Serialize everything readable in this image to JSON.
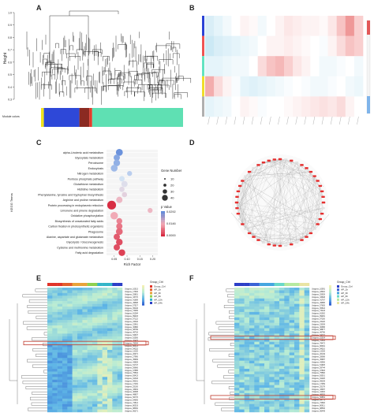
{
  "panels": {
    "a": {
      "label": "A",
      "ylabel": "Height",
      "ticks": [
        "1.0",
        "0.9",
        "0.8",
        "0.7",
        "0.6",
        "0.5",
        "0.4",
        "0.3"
      ],
      "module_label": "Module colors",
      "module_colors": [
        {
          "name": "yellow",
          "hex": "#f1e31c",
          "frac": 0.02
        },
        {
          "name": "blue",
          "hex": "#2e48d8",
          "frac": 0.25
        },
        {
          "name": "brown",
          "hex": "#8b2a22",
          "frac": 0.07
        },
        {
          "name": "red",
          "hex": "#e23a2a",
          "frac": 0.02
        },
        {
          "name": "turquoise",
          "hex": "#5fe0b3",
          "frac": 0.64
        }
      ]
    },
    "b": {
      "label": "B",
      "row_colors": [
        "#2a43d6",
        "#f05353",
        "#62e3c2",
        "#f0de2a",
        "#b0b0b0"
      ]
    },
    "c": {
      "label": "C",
      "xlabel": "Rich Factor",
      "ylabel": "KEGG Terms",
      "size_legend_title": "Gene Number",
      "size_legend_values": [
        "10",
        "20",
        "30",
        "40"
      ],
      "color_legend_title": "p Value",
      "color_legend_values": [
        "0.0292",
        "0.0146",
        "0.0000"
      ],
      "xticks": [
        "0.05",
        "0.10",
        "0.15",
        "0.20"
      ]
    },
    "d": {
      "label": "D"
    },
    "e": {
      "label": "E",
      "legend_title": "Group_Ctrl",
      "legend_items": [
        "Group_Ctrl",
        "AP_1h",
        "AP_3h",
        "AP_6h",
        "AP_12h",
        "AP_24h"
      ]
    },
    "f": {
      "label": "F",
      "legend_title": "Group_Ctrl",
      "legend_items": [
        "Group_Ctrl",
        "AP_1h",
        "AP_3h",
        "AP_6h",
        "AP_12h",
        "AP_24h"
      ]
    }
  },
  "chart_data": [
    {
      "type": "scatter",
      "title": "",
      "xlabel": "Rich Factor",
      "ylabel": "KEGG Terms",
      "xlim": [
        0.02,
        0.22
      ],
      "categories": [
        "alpha-Linolenic acid metabolism",
        "Glyoxylate metabolism",
        "Peroxisome",
        "Endocytosis",
        "Nitrogen metabolism",
        "Pentose phosphate pathway",
        "Glutathione metabolism",
        "Histidine metabolism",
        "Phenylalanine, tyrosine and tryptophan biosynthesis",
        "Arginine and proline metabolism",
        "Protein processing in endoplasmic reticulum",
        "Limonene and pinene degradation",
        "Oxidative phosphorylation",
        "Biosynthesis of unsaturated fatty acids",
        "Carbon fixation in photosynthetic organisms",
        "Phagosome",
        "Alanine, aspartate and glutamate metabolism",
        "Glycolysis / Gluconeogenesis",
        "Cysteine and methionine metabolism",
        "Fatty acid degradation"
      ],
      "x": [
        0.07,
        0.06,
        0.06,
        0.05,
        0.11,
        0.08,
        0.09,
        0.08,
        0.09,
        0.07,
        0.04,
        0.19,
        0.05,
        0.07,
        0.07,
        0.07,
        0.06,
        0.07,
        0.06,
        0.08
      ],
      "gene_number": [
        16,
        12,
        14,
        15,
        6,
        8,
        12,
        7,
        7,
        12,
        30,
        6,
        20,
        10,
        12,
        15,
        12,
        14,
        12,
        14
      ],
      "p_value": [
        0.028,
        0.026,
        0.025,
        0.024,
        0.022,
        0.02,
        0.018,
        0.017,
        0.016,
        0.012,
        0.0005,
        0.012,
        0.01,
        0.007,
        0.006,
        0.005,
        0.004,
        0.003,
        0.003,
        0.002
      ]
    }
  ]
}
